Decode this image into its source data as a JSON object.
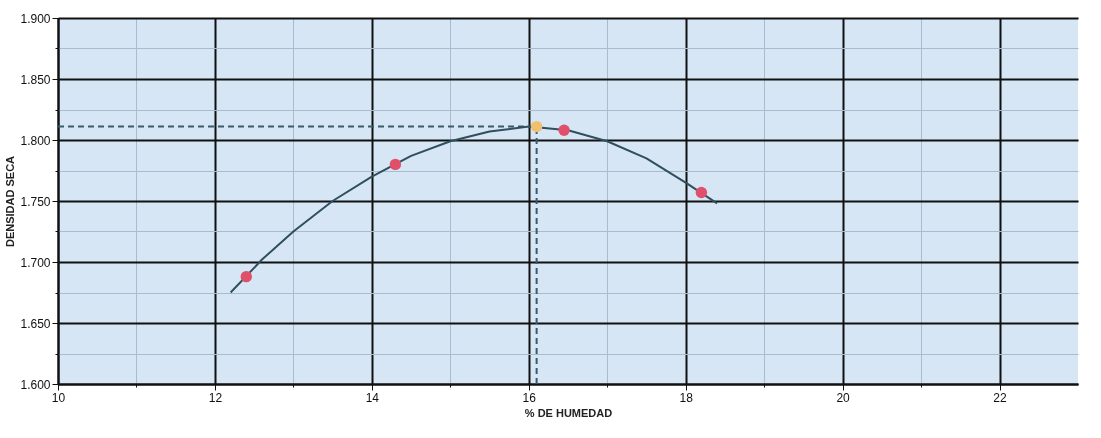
{
  "chart_data": {
    "type": "scatter",
    "xlabel": "% DE HUMEDAD",
    "ylabel": "DENSIDAD SECA",
    "xlim": [
      10,
      23
    ],
    "ylim": [
      1.6,
      1.9
    ],
    "xticks": [
      10,
      {
        "value": 11,
        "label": null
      },
      12,
      {
        "value": 13,
        "label": null
      },
      14,
      {
        "value": 15,
        "label": null
      },
      16,
      {
        "value": 17,
        "label": null
      },
      18,
      {
        "value": 19,
        "label": null
      },
      20,
      {
        "value": 21,
        "label": null
      },
      22
    ],
    "yticks": [
      {
        "value": 1.6,
        "label": "1.600"
      },
      {
        "value": 1.625,
        "label": null
      },
      {
        "value": 1.65,
        "label": "1.650"
      },
      {
        "value": 1.675,
        "label": null
      },
      {
        "value": 1.7,
        "label": "1.700"
      },
      {
        "value": 1.725,
        "label": null
      },
      {
        "value": 1.75,
        "label": "1.750"
      },
      {
        "value": 1.775,
        "label": null
      },
      {
        "value": 1.8,
        "label": "1.800"
      },
      {
        "value": 1.825,
        "label": null
      },
      {
        "value": 1.85,
        "label": "1.850"
      },
      {
        "value": 1.875,
        "label": null
      },
      {
        "value": 1.9,
        "label": "1.900"
      }
    ],
    "grid": true,
    "series": [
      {
        "type": "line",
        "color": "#2f4f5f",
        "marker": "none",
        "line_style": "solid",
        "x": [
          12.2,
          12.6,
          13,
          13.5,
          14,
          14.5,
          15,
          15.5,
          16,
          16.5,
          17,
          17.5,
          18,
          18.4
        ],
        "values": [
          1.675,
          1.702,
          1.725,
          1.75,
          1.77,
          1.787,
          1.799,
          1.807,
          1.811,
          1.808,
          1.799,
          1.785,
          1.765,
          1.748
        ]
      },
      {
        "color": "#e0506a",
        "marker": "circle",
        "x": [
          12.4,
          14.3,
          16.45,
          18.2
        ],
        "values": [
          1.688,
          1.78,
          1.808,
          1.757
        ]
      },
      {
        "color": "#f0c070",
        "marker": "circle",
        "x": [
          16.1
        ],
        "values": [
          1.811
        ]
      }
    ],
    "ref_lines": [
      {
        "axis": "y",
        "value": 1.811,
        "color": "#3a5a6a",
        "line_style": "dashed"
      },
      {
        "axis": "x",
        "value": 16.1,
        "color": "#3a5a6a",
        "line_style": "dashed"
      }
    ]
  }
}
